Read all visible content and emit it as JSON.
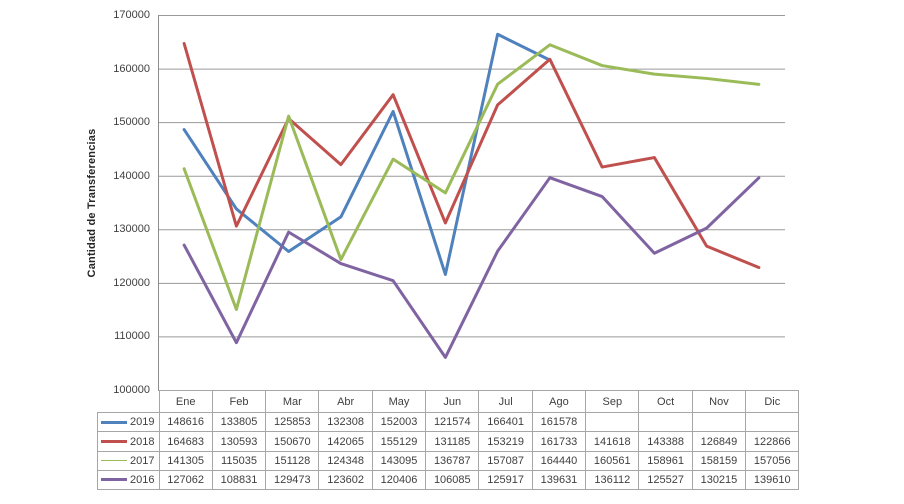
{
  "chart_data": {
    "type": "line",
    "title": "",
    "xlabel": "",
    "ylabel": "Cantidad de Transferencias",
    "ylim": [
      100000,
      170000
    ],
    "ytick_step": 10000,
    "ytick_labels": [
      "170000",
      "160000",
      "150000",
      "140000",
      "130000",
      "120000",
      "110000",
      "100000"
    ],
    "grid": true,
    "legend_position": "data-table-left",
    "categories": [
      "Ene",
      "Feb",
      "Mar",
      "Abr",
      "May",
      "Jun",
      "Jul",
      "Ago",
      "Sep",
      "Oct",
      "Nov",
      "Dic"
    ],
    "series": [
      {
        "name": "2019",
        "color": "#4F81BD",
        "key_thickness_px": 3,
        "values": [
          148616,
          133805,
          125853,
          132308,
          152003,
          121574,
          166401,
          161578,
          null,
          null,
          null,
          null
        ]
      },
      {
        "name": "2018",
        "color": "#C0504D",
        "key_thickness_px": 3,
        "values": [
          164683,
          130593,
          150670,
          142065,
          155129,
          131185,
          153219,
          161733,
          141618,
          143388,
          126849,
          122866
        ]
      },
      {
        "name": "2017",
        "color": "#9BBB59",
        "key_thickness_px": 1,
        "values": [
          141305,
          115035,
          151128,
          124348,
          143095,
          136787,
          157087,
          164440,
          160561,
          158961,
          158159,
          157056
        ]
      },
      {
        "name": "2016",
        "color": "#8064A2",
        "key_thickness_px": 3,
        "values": [
          127062,
          108831,
          129473,
          123602,
          120406,
          106085,
          125917,
          139631,
          136112,
          125527,
          130215,
          139610
        ]
      }
    ]
  },
  "colors": {
    "grid": "#9a9a9a",
    "axis": "#8c8c8c",
    "table_border": "#a6a6a6",
    "text": "#3f3f3f"
  }
}
